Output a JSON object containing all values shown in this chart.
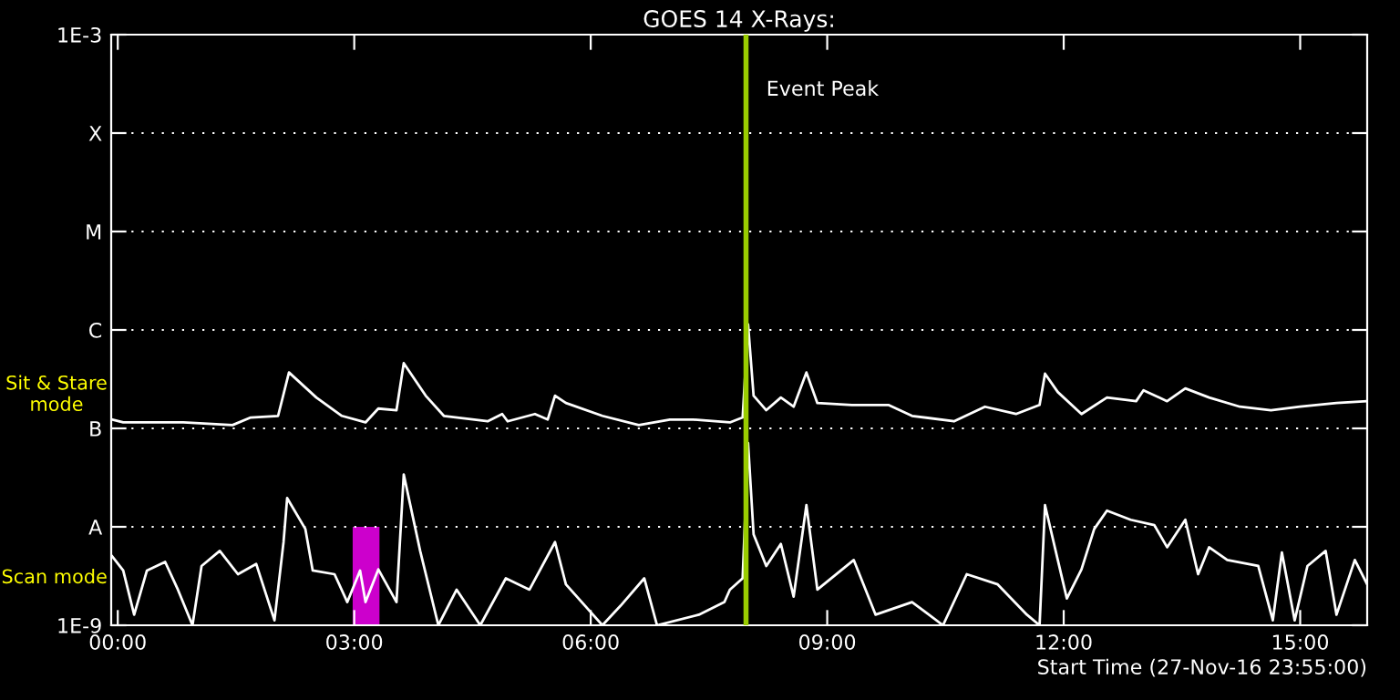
{
  "chart_data": {
    "type": "line",
    "title": "GOES 14 X-Rays:",
    "xlabel": "Start Time (27-Nov-16 23:55:00)",
    "annotations": [
      "Sit & Stare\nmode",
      "Scan mode"
    ],
    "log": true,
    "grid": "y",
    "xlim": [
      -0.0833,
      15.85
    ],
    "xticks": [
      {
        "value": 0,
        "label": "00:00"
      },
      {
        "value": 3,
        "label": "03:00"
      },
      {
        "value": 6,
        "label": "06:00"
      },
      {
        "value": 9,
        "label": "09:00"
      },
      {
        "value": 12,
        "label": "12:00"
      },
      {
        "value": 15,
        "label": "15:00"
      }
    ],
    "ylim": [
      1e-09,
      0.001
    ],
    "yticks": [
      {
        "value": 1e-09,
        "label": "1E-9"
      },
      {
        "value": 1e-08,
        "label": "A"
      },
      {
        "value": 1e-07,
        "label": "B"
      },
      {
        "value": 1e-06,
        "label": "C"
      },
      {
        "value": 1e-05,
        "label": "M"
      },
      {
        "value": 0.0001,
        "label": "X"
      },
      {
        "value": 0.001,
        "label": "1E-3"
      }
    ],
    "ref_lines": [
      {
        "axis": "x",
        "value": 7.97,
        "label": "Event Peak",
        "color": "#99cc00"
      }
    ],
    "bands": [
      {
        "axis": "x",
        "from": 2.98,
        "to": 3.32,
        "color": "#cc00cc"
      }
    ],
    "series": [
      {
        "color": "#ffffff",
        "x": [
          -0.069,
          0.069,
          0.832,
          1.456,
          1.687,
          2.034,
          2.172,
          2.519,
          2.843,
          3.143,
          3.305,
          3.536,
          3.628,
          3.906,
          4.137,
          4.692,
          4.877,
          4.946,
          5.292,
          5.454,
          5.547,
          5.685,
          6.148,
          6.61,
          7.003,
          7.303,
          7.765,
          7.927,
          7.996,
          8.066,
          8.227,
          8.412,
          8.574,
          8.736,
          8.875,
          9.314,
          9.776,
          10.076,
          10.608,
          11.001,
          11.394,
          11.694,
          11.763,
          11.925,
          12.226,
          12.549,
          12.919,
          13.012,
          13.312,
          13.543,
          13.844,
          14.236,
          14.629,
          14.999,
          15.461,
          15.85
        ],
        "values": [
          1.23e-07,
          1.15e-07,
          1.15e-07,
          1.08e-07,
          1.29e-07,
          1.34e-07,
          3.7e-07,
          2.06e-07,
          1.34e-07,
          1.15e-07,
          1.59e-07,
          1.53e-07,
          4.6e-07,
          2.15e-07,
          1.34e-07,
          1.18e-07,
          1.4e-07,
          1.18e-07,
          1.4e-07,
          1.23e-07,
          2.15e-07,
          1.81e-07,
          1.34e-07,
          1.08e-07,
          1.23e-07,
          1.23e-07,
          1.15e-07,
          1.29e-07,
          1.14e-06,
          2.15e-07,
          1.53e-07,
          2.06e-07,
          1.66e-07,
          3.7e-07,
          1.81e-07,
          1.73e-07,
          1.73e-07,
          1.34e-07,
          1.18e-07,
          1.66e-07,
          1.4e-07,
          1.73e-07,
          3.6e-07,
          2.34e-07,
          1.4e-07,
          2.06e-07,
          1.89e-07,
          2.44e-07,
          1.89e-07,
          2.55e-07,
          2.06e-07,
          1.66e-07,
          1.53e-07,
          1.66e-07,
          1.81e-07,
          1.89e-07
        ]
      },
      {
        "color": "#ffffff",
        "x": [
          -0.069,
          0.069,
          0.208,
          0.37,
          0.601,
          0.763,
          0.948,
          1.063,
          1.294,
          1.525,
          1.756,
          1.988,
          2.103,
          2.149,
          2.38,
          2.473,
          2.75,
          2.912,
          3.074,
          3.143,
          3.305,
          3.536,
          3.628,
          3.836,
          4.067,
          4.299,
          4.599,
          4.923,
          5.223,
          5.547,
          5.685,
          6.148,
          6.379,
          6.679,
          6.841,
          7.372,
          7.696,
          7.765,
          7.927,
          7.996,
          8.066,
          8.227,
          8.412,
          8.574,
          8.736,
          8.875,
          9.337,
          9.614,
          10.076,
          10.469,
          10.77,
          11.163,
          11.533,
          11.694,
          11.763,
          11.925,
          12.04,
          12.226,
          12.387,
          12.549,
          12.849,
          13.15,
          13.312,
          13.543,
          13.705,
          13.844,
          14.075,
          14.468,
          14.653,
          14.768,
          14.93,
          15.092,
          15.323,
          15.461,
          15.693,
          15.85
        ],
        "values": [
          5e-09,
          3.6e-09,
          1.28e-09,
          3.6e-09,
          4.4e-09,
          2.3e-09,
          1e-09,
          4e-09,
          5.7e-09,
          3.3e-09,
          4.2e-09,
          1.12e-09,
          7e-09,
          1.96e-08,
          9.5e-09,
          3.6e-09,
          3.3e-09,
          1.72e-09,
          3.6e-09,
          1.72e-09,
          3.7e-09,
          1.72e-09,
          3.4e-08,
          5.7e-09,
          1e-09,
          2.3e-09,
          1e-09,
          3e-09,
          2.3e-09,
          7e-09,
          2.6e-09,
          1e-09,
          1.58e-09,
          3e-09,
          1e-09,
          1.28e-09,
          1.72e-09,
          2.3e-09,
          3e-09,
          7.1e-08,
          8.4e-09,
          4e-09,
          6.7e-09,
          1.95e-09,
          1.66e-08,
          2.3e-09,
          4.6e-09,
          1.28e-09,
          1.72e-09,
          1e-09,
          3.3e-09,
          2.6e-09,
          1.28e-09,
          1e-09,
          1.66e-08,
          4.6e-09,
          1.87e-09,
          3.7e-09,
          9.5e-09,
          1.46e-08,
          1.18e-08,
          1.04e-08,
          6.2e-09,
          1.18e-08,
          3.3e-09,
          6.2e-09,
          4.6e-09,
          4e-09,
          1.12e-09,
          5.5e-09,
          1.12e-09,
          4e-09,
          5.7e-09,
          1.28e-09,
          4.6e-09,
          2.6e-09
        ]
      }
    ]
  }
}
